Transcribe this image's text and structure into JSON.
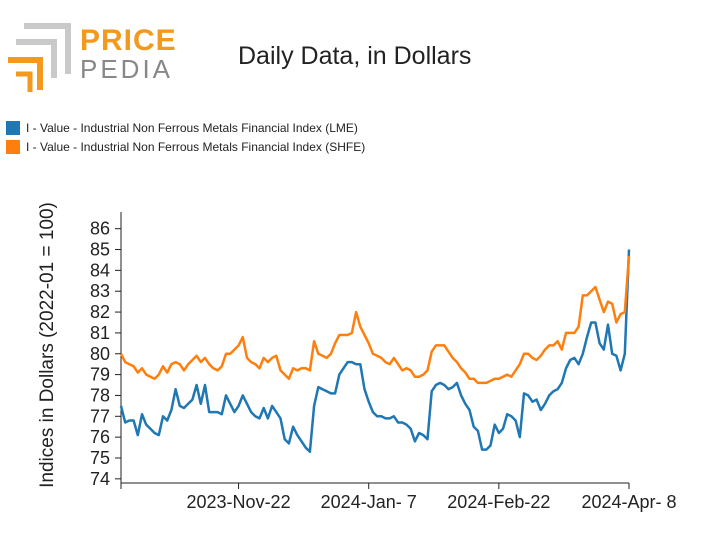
{
  "brand": {
    "line1": "PRICE",
    "line2": "PEDIA",
    "orange": "#f39a1e",
    "gray": "#888888"
  },
  "chart_data": {
    "type": "line",
    "title": "Daily Data, in Dollars",
    "ylabel": "Indices in Dollars (2022-01 = 100)",
    "xlabel": "",
    "ylim": [
      73.8,
      86.8
    ],
    "yticks": [
      74,
      75,
      76,
      77,
      78,
      79,
      80,
      81,
      82,
      83,
      84,
      85,
      86
    ],
    "xlim": [
      0,
      121
    ],
    "xticks": [
      {
        "x": 0,
        "label": ""
      },
      {
        "x": 28,
        "label": "2023-Nov-22"
      },
      {
        "x": 59,
        "label": "2024-Jan- 7"
      },
      {
        "x": 90,
        "label": "2024-Feb-22"
      },
      {
        "x": 121,
        "label": "2024-Apr- 8"
      }
    ],
    "series": [
      {
        "name": "I - Value - Industrial Non Ferrous Metals Financial Index (LME)",
        "color": "#1f77b4",
        "points": [
          [
            0,
            77.5
          ],
          [
            1,
            76.7
          ],
          [
            2,
            76.8
          ],
          [
            3,
            76.8
          ],
          [
            4,
            76.1
          ],
          [
            5,
            77.1
          ],
          [
            6,
            76.6
          ],
          [
            7,
            76.4
          ],
          [
            8,
            76.2
          ],
          [
            9,
            76.1
          ],
          [
            10,
            77.0
          ],
          [
            11,
            76.8
          ],
          [
            12,
            77.3
          ],
          [
            13,
            78.3
          ],
          [
            14,
            77.5
          ],
          [
            15,
            77.4
          ],
          [
            16,
            77.6
          ],
          [
            17,
            77.8
          ],
          [
            18,
            78.5
          ],
          [
            19,
            77.6
          ],
          [
            20,
            78.5
          ],
          [
            21,
            77.2
          ],
          [
            22,
            77.2
          ],
          [
            23,
            77.2
          ],
          [
            24,
            77.1
          ],
          [
            25,
            78.0
          ],
          [
            26,
            77.6
          ],
          [
            27,
            77.2
          ],
          [
            28,
            77.5
          ],
          [
            29,
            78.0
          ],
          [
            30,
            77.6
          ],
          [
            31,
            77.2
          ],
          [
            32,
            77.0
          ],
          [
            33,
            76.9
          ],
          [
            34,
            77.4
          ],
          [
            35,
            76.9
          ],
          [
            36,
            77.5
          ],
          [
            37,
            77.2
          ],
          [
            38,
            76.9
          ],
          [
            39,
            75.9
          ],
          [
            40,
            75.7
          ],
          [
            41,
            76.5
          ],
          [
            42,
            76.1
          ],
          [
            43,
            75.8
          ],
          [
            44,
            75.5
          ],
          [
            45,
            75.3
          ],
          [
            46,
            77.5
          ],
          [
            47,
            78.4
          ],
          [
            48,
            78.3
          ],
          [
            49,
            78.2
          ],
          [
            50,
            78.1
          ],
          [
            51,
            78.1
          ],
          [
            52,
            79.0
          ],
          [
            53,
            79.3
          ],
          [
            54,
            79.6
          ],
          [
            55,
            79.6
          ],
          [
            56,
            79.5
          ],
          [
            57,
            79.5
          ],
          [
            58,
            78.3
          ],
          [
            59,
            77.7
          ],
          [
            60,
            77.2
          ],
          [
            61,
            77.0
          ],
          [
            62,
            77.0
          ],
          [
            63,
            76.9
          ],
          [
            64,
            76.9
          ],
          [
            65,
            77.0
          ],
          [
            66,
            76.7
          ],
          [
            67,
            76.7
          ],
          [
            68,
            76.6
          ],
          [
            69,
            76.4
          ],
          [
            70,
            75.8
          ],
          [
            71,
            76.2
          ],
          [
            72,
            76.1
          ],
          [
            73,
            75.9
          ],
          [
            74,
            78.2
          ],
          [
            75,
            78.5
          ],
          [
            76,
            78.6
          ],
          [
            77,
            78.5
          ],
          [
            78,
            78.3
          ],
          [
            79,
            78.4
          ],
          [
            80,
            78.6
          ],
          [
            81,
            78.0
          ],
          [
            82,
            77.6
          ],
          [
            83,
            77.3
          ],
          [
            84,
            76.5
          ],
          [
            85,
            76.3
          ],
          [
            86,
            75.4
          ],
          [
            87,
            75.4
          ],
          [
            88,
            75.6
          ],
          [
            89,
            76.6
          ],
          [
            90,
            76.2
          ],
          [
            91,
            76.4
          ],
          [
            92,
            77.1
          ],
          [
            93,
            77.0
          ],
          [
            94,
            76.8
          ],
          [
            95,
            76.0
          ],
          [
            96,
            78.1
          ],
          [
            97,
            78.0
          ],
          [
            98,
            77.7
          ],
          [
            99,
            77.8
          ],
          [
            100,
            77.3
          ],
          [
            101,
            77.6
          ],
          [
            102,
            78.0
          ],
          [
            103,
            78.2
          ],
          [
            104,
            78.3
          ],
          [
            105,
            78.6
          ],
          [
            106,
            79.3
          ],
          [
            107,
            79.7
          ],
          [
            108,
            79.8
          ],
          [
            109,
            79.5
          ],
          [
            110,
            80.0
          ],
          [
            111,
            80.8
          ],
          [
            112,
            81.5
          ],
          [
            113,
            81.5
          ],
          [
            114,
            80.5
          ],
          [
            115,
            80.2
          ],
          [
            116,
            81.4
          ],
          [
            117,
            80.0
          ],
          [
            118,
            79.9
          ],
          [
            119,
            79.2
          ],
          [
            120,
            80.0
          ],
          [
            121,
            85.0
          ]
        ]
      },
      {
        "name": "I - Value - Industrial Non Ferrous Metals Financial Index (SHFE)",
        "color": "#ff7f0e",
        "points": [
          [
            0,
            80.0
          ],
          [
            1,
            79.6
          ],
          [
            2,
            79.5
          ],
          [
            3,
            79.4
          ],
          [
            4,
            79.1
          ],
          [
            5,
            79.3
          ],
          [
            6,
            79.0
          ],
          [
            7,
            78.9
          ],
          [
            8,
            78.8
          ],
          [
            9,
            79.0
          ],
          [
            10,
            79.4
          ],
          [
            11,
            79.1
          ],
          [
            12,
            79.5
          ],
          [
            13,
            79.6
          ],
          [
            14,
            79.5
          ],
          [
            15,
            79.2
          ],
          [
            16,
            79.5
          ],
          [
            17,
            79.7
          ],
          [
            18,
            79.9
          ],
          [
            19,
            79.6
          ],
          [
            20,
            79.8
          ],
          [
            21,
            79.5
          ],
          [
            22,
            79.3
          ],
          [
            23,
            79.2
          ],
          [
            24,
            79.4
          ],
          [
            25,
            80.0
          ],
          [
            26,
            80.0
          ],
          [
            27,
            80.2
          ],
          [
            28,
            80.4
          ],
          [
            29,
            80.8
          ],
          [
            30,
            79.8
          ],
          [
            31,
            79.6
          ],
          [
            32,
            79.5
          ],
          [
            33,
            79.3
          ],
          [
            34,
            79.8
          ],
          [
            35,
            79.6
          ],
          [
            36,
            79.8
          ],
          [
            37,
            79.9
          ],
          [
            38,
            79.2
          ],
          [
            39,
            79.0
          ],
          [
            40,
            78.8
          ],
          [
            41,
            79.3
          ],
          [
            42,
            79.2
          ],
          [
            43,
            79.3
          ],
          [
            44,
            79.3
          ],
          [
            45,
            79.2
          ],
          [
            46,
            80.6
          ],
          [
            47,
            80.0
          ],
          [
            48,
            79.9
          ],
          [
            49,
            79.8
          ],
          [
            50,
            80.0
          ],
          [
            51,
            80.5
          ],
          [
            52,
            80.9
          ],
          [
            53,
            80.9
          ],
          [
            54,
            80.9
          ],
          [
            55,
            81.0
          ],
          [
            56,
            82.0
          ],
          [
            57,
            81.3
          ],
          [
            58,
            80.9
          ],
          [
            59,
            80.5
          ],
          [
            60,
            80.0
          ],
          [
            61,
            79.9
          ],
          [
            62,
            79.8
          ],
          [
            63,
            79.6
          ],
          [
            64,
            79.5
          ],
          [
            65,
            79.8
          ],
          [
            66,
            79.5
          ],
          [
            67,
            79.2
          ],
          [
            68,
            79.3
          ],
          [
            69,
            79.2
          ],
          [
            70,
            78.9
          ],
          [
            71,
            78.9
          ],
          [
            72,
            79.0
          ],
          [
            73,
            79.2
          ],
          [
            74,
            80.1
          ],
          [
            75,
            80.4
          ],
          [
            76,
            80.4
          ],
          [
            77,
            80.4
          ],
          [
            78,
            80.1
          ],
          [
            79,
            79.8
          ],
          [
            80,
            79.6
          ],
          [
            81,
            79.3
          ],
          [
            82,
            79.1
          ],
          [
            83,
            78.8
          ],
          [
            84,
            78.8
          ],
          [
            85,
            78.6
          ],
          [
            86,
            78.6
          ],
          [
            87,
            78.6
          ],
          [
            88,
            78.7
          ],
          [
            89,
            78.8
          ],
          [
            90,
            78.8
          ],
          [
            91,
            78.9
          ],
          [
            92,
            79.0
          ],
          [
            93,
            78.9
          ],
          [
            94,
            79.2
          ],
          [
            95,
            79.5
          ],
          [
            96,
            80.0
          ],
          [
            97,
            80.0
          ],
          [
            98,
            79.8
          ],
          [
            99,
            79.7
          ],
          [
            100,
            79.9
          ],
          [
            101,
            80.2
          ],
          [
            102,
            80.4
          ],
          [
            103,
            80.4
          ],
          [
            104,
            80.6
          ],
          [
            105,
            80.2
          ],
          [
            106,
            81.0
          ],
          [
            107,
            81.0
          ],
          [
            108,
            81.0
          ],
          [
            109,
            81.3
          ],
          [
            110,
            82.8
          ],
          [
            111,
            82.8
          ],
          [
            112,
            83.0
          ],
          [
            113,
            83.2
          ],
          [
            114,
            82.6
          ],
          [
            115,
            82.0
          ],
          [
            116,
            82.5
          ],
          [
            117,
            82.4
          ],
          [
            118,
            81.5
          ],
          [
            119,
            81.9
          ],
          [
            120,
            82.0
          ],
          [
            121,
            84.7
          ]
        ]
      }
    ]
  }
}
